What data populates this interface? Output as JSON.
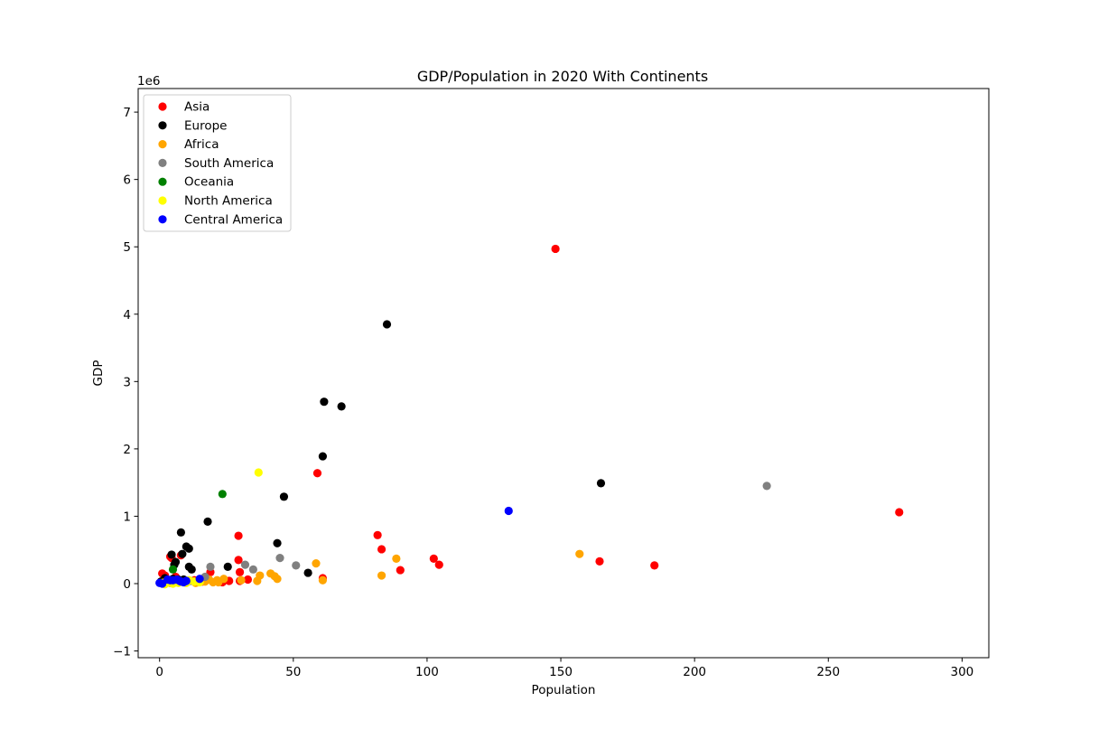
{
  "chart_data": {
    "type": "scatter",
    "title": "GDP/Population in 2020 With Continents",
    "xlabel": "Population",
    "ylabel": "GDP",
    "y_offset_label": "1e6",
    "xlim": [
      -8,
      310
    ],
    "ylim": [
      -1.1,
      7.35
    ],
    "xticks": [
      0,
      50,
      100,
      150,
      200,
      250,
      300
    ],
    "xtick_labels": [
      "0",
      "50",
      "100",
      "150",
      "200",
      "250",
      "300"
    ],
    "yticks": [
      -1,
      0,
      1,
      2,
      3,
      4,
      5,
      6,
      7
    ],
    "ytick_labels": [
      "−1",
      "0",
      "1",
      "2",
      "3",
      "4",
      "5",
      "6",
      "7"
    ],
    "grid": false,
    "legend_position": "top-left",
    "series": [
      {
        "name": "Asia",
        "color": "#ff0000",
        "points": [
          [
            148.0,
            4.97
          ],
          [
            276.5,
            1.06
          ],
          [
            59.0,
            1.64
          ],
          [
            81.5,
            0.72
          ],
          [
            83.0,
            0.51
          ],
          [
            102.5,
            0.37
          ],
          [
            104.5,
            0.28
          ],
          [
            90.0,
            0.2
          ],
          [
            164.5,
            0.33
          ],
          [
            185.0,
            0.27
          ],
          [
            29.5,
            0.71
          ],
          [
            29.5,
            0.35
          ],
          [
            30.0,
            0.17
          ],
          [
            33.0,
            0.06
          ],
          [
            30.0,
            0.04
          ],
          [
            19.0,
            0.17
          ],
          [
            8.0,
            0.42
          ],
          [
            4.0,
            0.4
          ],
          [
            4.5,
            0.38
          ],
          [
            1.0,
            0.15
          ],
          [
            2.0,
            0.12
          ],
          [
            6.0,
            0.1
          ],
          [
            13.0,
            0.05
          ],
          [
            23.5,
            0.02
          ],
          [
            61.0,
            0.08
          ],
          [
            1.0,
            0.02
          ],
          [
            3.0,
            0.05
          ],
          [
            9.5,
            0.04
          ],
          [
            16.0,
            0.03
          ],
          [
            26.0,
            0.04
          ],
          [
            7.0,
            0.02
          ]
        ]
      },
      {
        "name": "Europe",
        "color": "#000000",
        "points": [
          [
            85.0,
            3.85
          ],
          [
            61.5,
            2.7
          ],
          [
            68.0,
            2.63
          ],
          [
            61.0,
            1.89
          ],
          [
            165.0,
            1.49
          ],
          [
            46.5,
            1.29
          ],
          [
            18.0,
            0.92
          ],
          [
            8.0,
            0.76
          ],
          [
            10.0,
            0.55
          ],
          [
            11.0,
            0.52
          ],
          [
            44.0,
            0.6
          ],
          [
            8.5,
            0.44
          ],
          [
            4.5,
            0.43
          ],
          [
            6.0,
            0.32
          ],
          [
            5.5,
            0.28
          ],
          [
            11.0,
            0.25
          ],
          [
            12.0,
            0.21
          ],
          [
            25.5,
            0.25
          ],
          [
            55.5,
            0.16
          ],
          [
            2.0,
            0.08
          ],
          [
            5.0,
            0.07
          ],
          [
            7.0,
            0.06
          ],
          [
            1.5,
            0.05
          ],
          [
            3.0,
            0.04
          ],
          [
            9.0,
            0.06
          ],
          [
            0.5,
            0.03
          ]
        ]
      },
      {
        "name": "Africa",
        "color": "#ffa500",
        "points": [
          [
            157.0,
            0.44
          ],
          [
            88.5,
            0.37
          ],
          [
            58.5,
            0.3
          ],
          [
            83.0,
            0.12
          ],
          [
            61.0,
            0.05
          ],
          [
            41.5,
            0.15
          ],
          [
            43.0,
            0.11
          ],
          [
            44.0,
            0.07
          ],
          [
            37.5,
            0.12
          ],
          [
            36.5,
            0.04
          ],
          [
            30.5,
            0.05
          ],
          [
            24.0,
            0.07
          ],
          [
            21.5,
            0.05
          ],
          [
            20.0,
            0.02
          ],
          [
            22.0,
            0.02
          ],
          [
            17.0,
            0.03
          ],
          [
            14.5,
            0.02
          ],
          [
            12.0,
            0.04
          ],
          [
            10.0,
            0.02
          ],
          [
            8.0,
            0.03
          ],
          [
            6.0,
            0.02
          ],
          [
            4.0,
            0.01
          ],
          [
            2.0,
            0.02
          ],
          [
            13.5,
            0.01
          ],
          [
            18.5,
            0.06
          ]
        ]
      },
      {
        "name": "South America",
        "color": "#808080",
        "points": [
          [
            227.0,
            1.45
          ],
          [
            45.0,
            0.38
          ],
          [
            32.0,
            0.28
          ],
          [
            51.0,
            0.27
          ],
          [
            35.0,
            0.21
          ],
          [
            19.0,
            0.25
          ],
          [
            17.0,
            0.1
          ],
          [
            11.5,
            0.04
          ],
          [
            7.0,
            0.04
          ],
          [
            3.5,
            0.05
          ]
        ]
      },
      {
        "name": "Oceania",
        "color": "#008000",
        "points": [
          [
            23.5,
            1.33
          ],
          [
            5.0,
            0.21
          ]
        ]
      },
      {
        "name": "North America",
        "color": "#ffff00",
        "points": [
          [
            37.0,
            1.65
          ],
          [
            1.0,
            0.01
          ],
          [
            3.0,
            0.02
          ],
          [
            5.0,
            0.0
          ],
          [
            7.0,
            0.01
          ],
          [
            9.0,
            0.02
          ],
          [
            11.0,
            0.05
          ],
          [
            13.0,
            0.03
          ],
          [
            15.0,
            0.02
          ],
          [
            2.0,
            -0.01
          ],
          [
            6.0,
            0.03
          ],
          [
            10.0,
            0.01
          ]
        ]
      },
      {
        "name": "Central America",
        "color": "#0000ff",
        "points": [
          [
            130.5,
            1.08
          ],
          [
            15.0,
            0.07
          ],
          [
            4.0,
            0.05
          ],
          [
            6.5,
            0.06
          ],
          [
            8.0,
            0.03
          ],
          [
            9.0,
            0.02
          ],
          [
            10.0,
            0.04
          ],
          [
            0.0,
            0.01
          ],
          [
            1.0,
            0.0
          ],
          [
            5.0,
            0.05
          ],
          [
            3.0,
            0.06
          ],
          [
            7.5,
            0.04
          ]
        ]
      }
    ]
  }
}
